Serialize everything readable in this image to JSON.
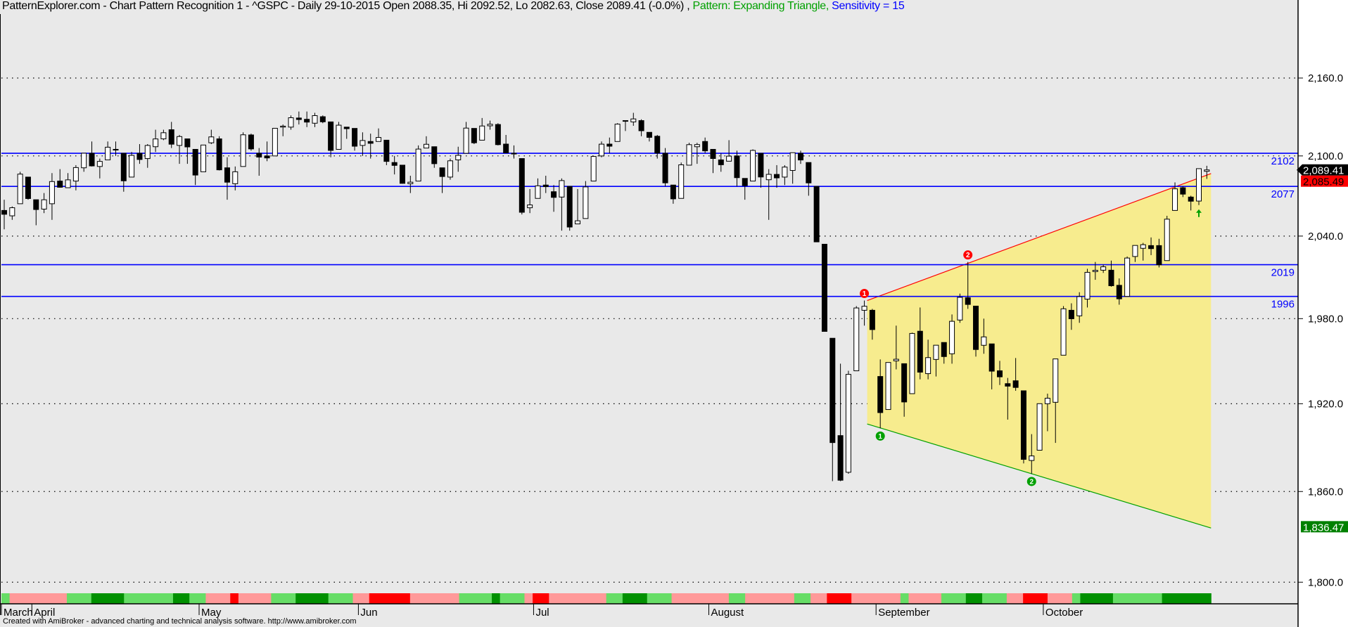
{
  "title": {
    "main": "PatternExplorer.com - Chart Pattern Recognition 1  - ^GSPC - Daily 29-10-2015 Open 2088.35, Hi 2092.52, Lo 2082.63, Close 2089.41 (-0.0%) ,",
    "pattern": " Pattern: Expanding Triangle,",
    "sensitivity": " Sensitivity = 15"
  },
  "footer": "Created with AmiBroker - advanced charting and technical analysis software. http://www.amibroker.com",
  "colors": {
    "background": "#e9e9e9",
    "level_line": "#0000ff",
    "upper_trend": "#ff0000",
    "lower_trend": "#00a000",
    "pattern_fill": "#f7ec8e",
    "strip_light_green": "#66dd66",
    "strip_dark_green": "#009000",
    "strip_pink": "#ff9999",
    "strip_red": "#ff0000"
  },
  "chart_data": {
    "type": "candlestick",
    "symbol": "^GSPC",
    "y_scale": "log",
    "ylim": [
      1790,
      2200
    ],
    "y_ticks": [
      "2,160.0",
      "2,100.0",
      "2,040.0",
      "1,980.0",
      "1,920.0",
      "1,860.0",
      "1,800.0"
    ],
    "y_tick_values": [
      2160,
      2100,
      2040,
      1980,
      1920,
      1860,
      1800
    ],
    "grid": "horizontal dotted",
    "x_labels": [
      {
        "label": "March",
        "index": 0
      },
      {
        "label": "April",
        "index": 4
      },
      {
        "label": "May",
        "index": 25
      },
      {
        "label": "Jun",
        "index": 45
      },
      {
        "label": "Jul",
        "index": 67
      },
      {
        "label": "August",
        "index": 89
      },
      {
        "label": "September",
        "index": 110
      },
      {
        "label": "October",
        "index": 131
      }
    ],
    "ohlc_fields": [
      "open",
      "high",
      "low",
      "close"
    ],
    "ohlc": [
      [
        2059,
        2067,
        2045,
        2056.15
      ],
      [
        2055,
        2062,
        2052,
        2061.02
      ],
      [
        2064,
        2088,
        2064,
        2086.24
      ],
      [
        2084,
        2084,
        2067,
        2067.89
      ],
      [
        2067,
        2067,
        2048,
        2059.69
      ],
      [
        2060,
        2072,
        2057,
        2066.96
      ],
      [
        2064,
        2087,
        2052,
        2080.62
      ],
      [
        2081,
        2090,
        2076,
        2076.33
      ],
      [
        2076,
        2087,
        2076,
        2081.9
      ],
      [
        2081,
        2093,
        2074,
        2091.18
      ],
      [
        2091,
        2102,
        2088,
        2102.06
      ],
      [
        2102,
        2111,
        2092,
        2092.43
      ],
      [
        2092,
        2098,
        2083,
        2095.84
      ],
      [
        2097,
        2111,
        2097,
        2106.63
      ],
      [
        2105,
        2111,
        2100,
        2104.99
      ],
      [
        2102,
        2102,
        2073,
        2081.18
      ],
      [
        2084,
        2103,
        2084,
        2100.4
      ],
      [
        2102,
        2109,
        2094,
        2097.29
      ],
      [
        2098,
        2109,
        2091,
        2107.96
      ],
      [
        2107,
        2120,
        2103,
        2112.93
      ],
      [
        2113,
        2120,
        2112,
        2117.69
      ],
      [
        2120,
        2126,
        2106,
        2108.92
      ],
      [
        2108,
        2116,
        2094,
        2114.76
      ],
      [
        2113,
        2113,
        2094,
        2106.85
      ],
      [
        2105,
        2105,
        2078,
        2085.51
      ],
      [
        2088,
        2108,
        2088,
        2108.29
      ],
      [
        2110,
        2120,
        2109,
        2114.49
      ],
      [
        2113,
        2115,
        2089,
        2089.46
      ],
      [
        2091,
        2099,
        2067,
        2080.15
      ],
      [
        2079,
        2092,
        2074,
        2088.0
      ],
      [
        2092,
        2118,
        2092,
        2116.1
      ],
      [
        2116,
        2117,
        2104,
        2105.33
      ],
      [
        2102,
        2106,
        2085,
        2099.12
      ],
      [
        2100,
        2111,
        2096,
        2098.48
      ],
      [
        2100,
        2121,
        2100,
        2121.1
      ],
      [
        2122,
        2124,
        2115,
        2122.73
      ],
      [
        2122,
        2131,
        2120,
        2129.2
      ],
      [
        2129,
        2134,
        2124,
        2127.83
      ],
      [
        2128,
        2134,
        2122,
        2125.85
      ],
      [
        2125,
        2133,
        2122,
        2130.82
      ],
      [
        2130,
        2131,
        2125,
        2126.06
      ],
      [
        2126,
        2126,
        2099,
        2104.2
      ],
      [
        2105,
        2126,
        2105,
        2123.48
      ],
      [
        2122,
        2122,
        2113,
        2120.79
      ],
      [
        2121,
        2121,
        2104,
        2107.39
      ],
      [
        2108,
        2118,
        2100,
        2111.73
      ],
      [
        2111,
        2117,
        2098,
        2109.6
      ],
      [
        2111,
        2121,
        2111,
        2114.07
      ],
      [
        2112,
        2112,
        2093,
        2095.84
      ],
      [
        2095,
        2100,
        2086,
        2092.83
      ],
      [
        2093,
        2093,
        2079,
        2079.28
      ],
      [
        2079,
        2085,
        2072,
        2080.15
      ],
      [
        2081,
        2108,
        2081,
        2105.2
      ],
      [
        2106,
        2115,
        2106,
        2108.86
      ],
      [
        2107,
        2107,
        2091,
        2094.11
      ],
      [
        2091,
        2091,
        2072,
        2084.43
      ],
      [
        2084,
        2098,
        2082,
        2096.29
      ],
      [
        2097,
        2107,
        2088,
        2100.44
      ],
      [
        2102,
        2126,
        2102,
        2121.24
      ],
      [
        2121,
        2121,
        2109,
        2109.99
      ],
      [
        2112,
        2129,
        2112,
        2122.85
      ],
      [
        2123,
        2127,
        2120,
        2124.2
      ],
      [
        2124,
        2125,
        2108,
        2108.58
      ],
      [
        2109,
        2116,
        2102,
        2102.31
      ],
      [
        2102,
        2108,
        2098,
        2101.49
      ],
      [
        2098,
        2098,
        2056,
        2057.64
      ],
      [
        2061,
        2075,
        2057,
        2063.11
      ],
      [
        2068,
        2083,
        2068,
        2077.42
      ],
      [
        2078,
        2085,
        2072,
        2076.78
      ],
      [
        2073,
        2078,
        2058,
        2068.76
      ],
      [
        2069,
        2083,
        2044,
        2081.34
      ],
      [
        2077,
        2077,
        2044,
        2046.68
      ],
      [
        2049,
        2075,
        2049,
        2051.31
      ],
      [
        2053,
        2081,
        2053,
        2076.62
      ],
      [
        2081,
        2100,
        2081,
        2099.6
      ],
      [
        2100,
        2111,
        2099,
        2108.95
      ],
      [
        2109,
        2114,
        2102,
        2107.4
      ],
      [
        2111,
        2125,
        2111,
        2124.29
      ],
      [
        2127,
        2127,
        2119,
        2126.64
      ],
      [
        2126,
        2133,
        2123,
        2128.28
      ],
      [
        2127,
        2128,
        2115,
        2119.21
      ],
      [
        2118,
        2118,
        2111,
        2114.15
      ],
      [
        2115,
        2116,
        2098,
        2102.15
      ],
      [
        2102,
        2106,
        2077,
        2079.65
      ],
      [
        2078,
        2078,
        2064,
        2067.64
      ],
      [
        2068,
        2095,
        2068,
        2093.25
      ],
      [
        2093,
        2110,
        2093,
        2108.57
      ],
      [
        2107,
        2110,
        2094,
        2108.63
      ],
      [
        2111,
        2114,
        2102,
        2103.84
      ],
      [
        2105,
        2105,
        2087,
        2098.04
      ],
      [
        2097,
        2102,
        2088,
        2093.32
      ],
      [
        2096,
        2112,
        2096,
        2099.84
      ],
      [
        2100,
        2104,
        2077,
        2083.56
      ],
      [
        2083,
        2083,
        2067,
        2077.57
      ],
      [
        2081,
        2105,
        2081,
        2104.18
      ],
      [
        2102,
        2102,
        2076,
        2084.07
      ],
      [
        2082,
        2090,
        2052,
        2086.05
      ],
      [
        2086,
        2093,
        2076,
        2083.39
      ],
      [
        2084,
        2093,
        2078,
        2091.54
      ],
      [
        2089,
        2102,
        2079,
        2102.44
      ],
      [
        2102,
        2104,
        2094,
        2096.92
      ],
      [
        2095,
        2095,
        2070,
        2079.61
      ],
      [
        2077,
        2077,
        2036,
        2035.73
      ],
      [
        2034,
        2034,
        1971,
        1970.89
      ],
      [
        1966,
        1966,
        1867,
        1893.21
      ],
      [
        1898,
        1948,
        1867,
        1867.61
      ],
      [
        1873,
        1943,
        1872,
        1940.51
      ],
      [
        1943,
        1989,
        1943,
        1987.66
      ],
      [
        1986,
        1993,
        1975,
        1988.87
      ],
      [
        1986,
        1987,
        1965,
        1972.18
      ],
      [
        1939,
        1951,
        1903,
        1913.85
      ],
      [
        1916,
        1949,
        1916,
        1948.86
      ],
      [
        1950,
        1975,
        1944,
        1951.13
      ],
      [
        1948,
        1948,
        1911,
        1921.22
      ],
      [
        1927,
        1970,
        1927,
        1969.41
      ],
      [
        1971,
        1988,
        1937,
        1942.04
      ],
      [
        1941,
        1965,
        1937,
        1952.29
      ],
      [
        1951,
        1961,
        1939,
        1961.05
      ],
      [
        1963,
        1963,
        1948,
        1953.03
      ],
      [
        1955,
        1983,
        1948,
        1978.09
      ],
      [
        1979,
        1998,
        1977,
        1995.31
      ],
      [
        1995,
        2021,
        1987,
        1990.2
      ],
      [
        1989,
        1989,
        1953,
        1958.03
      ],
      [
        1961,
        1980,
        1955,
        1966.97
      ],
      [
        1962,
        1962,
        1930,
        1942.74
      ],
      [
        1943,
        1950,
        1933,
        1938.76
      ],
      [
        1934,
        1938,
        1909,
        1932.24
      ],
      [
        1936,
        1952,
        1929,
        1931.34
      ],
      [
        1929,
        1929,
        1879,
        1881.77
      ],
      [
        1881,
        1899,
        1872,
        1884.09
      ],
      [
        1888,
        1920,
        1888,
        1920.03
      ],
      [
        1920,
        1927,
        1901,
        1923.82
      ],
      [
        1921,
        1951,
        1893,
        1951.36
      ],
      [
        1954,
        1989,
        1954,
        1987.05
      ],
      [
        1986,
        1991,
        1972,
        1979.92
      ],
      [
        1982,
        1999,
        1977,
        1995.83
      ],
      [
        1994,
        2016,
        1988,
        2013.43
      ],
      [
        2014,
        2021,
        2008,
        2014.89
      ],
      [
        2015,
        2019,
        2013,
        2017.46
      ],
      [
        2015,
        2022,
        2003,
        2003.69
      ],
      [
        2004,
        2009,
        1990,
        1994.24
      ],
      [
        1996,
        2025,
        1996,
        2023.86
      ],
      [
        2025,
        2033,
        2021,
        2033.11
      ],
      [
        2031,
        2035,
        2022,
        2033.66
      ],
      [
        2033,
        2039,
        2026,
        2030.77
      ],
      [
        2033,
        2038,
        2017,
        2018.94
      ],
      [
        2022,
        2055,
        2022,
        2052.51
      ],
      [
        2059,
        2080,
        2059,
        2075.15
      ],
      [
        2076,
        2077,
        2069,
        2071.18
      ],
      [
        2069,
        2070,
        2059,
        2065.89
      ],
      [
        2066,
        2090,
        2063,
        2090.35
      ],
      [
        2088.35,
        2092.52,
        2082.63,
        2089.41
      ]
    ],
    "levels": [
      {
        "label": "2102",
        "value": 2102
      },
      {
        "label": "2077",
        "value": 2077
      },
      {
        "label": "2019",
        "value": 2019
      },
      {
        "label": "1996",
        "value": 1996
      }
    ],
    "pattern": {
      "upper": {
        "from_index": 108,
        "from_price": 1993.0,
        "to_index": 151,
        "to_price": 2085.49
      },
      "lower": {
        "from_index": 108,
        "from_price": 1906.0,
        "to_index": 151,
        "to_price": 1836.47
      }
    },
    "pivots": [
      {
        "label": "1",
        "type": "high",
        "index": 108
      },
      {
        "label": "2",
        "type": "high",
        "index": 121
      },
      {
        "label": "1",
        "type": "low",
        "index": 110
      },
      {
        "label": "2",
        "type": "low",
        "index": 129
      }
    ],
    "signal_arrow": {
      "type": "buy",
      "index": 150
    },
    "badges": [
      {
        "label": "2,089.41",
        "value": 2089.41,
        "color": "#000000"
      },
      {
        "label": "2,085.49",
        "value": 2085.49,
        "color": "#ff0000"
      },
      {
        "label": "1,836.47",
        "value": 1836.47,
        "color": "#008000"
      }
    ],
    "strip": [
      [
        "lg",
        1
      ],
      [
        "pk",
        7
      ],
      [
        "lg",
        3
      ],
      [
        "dg",
        4
      ],
      [
        "lg",
        6
      ],
      [
        "dg",
        2
      ],
      [
        "lg",
        2
      ],
      [
        "pk",
        3
      ],
      [
        "rd",
        1
      ],
      [
        "pk",
        4
      ],
      [
        "lg",
        3
      ],
      [
        "dg",
        4
      ],
      [
        "lg",
        3
      ],
      [
        "pk",
        2
      ],
      [
        "rd",
        5
      ],
      [
        "pk",
        6
      ],
      [
        "lg",
        4
      ],
      [
        "dg",
        1
      ],
      [
        "lg",
        3
      ],
      [
        "pk",
        1
      ],
      [
        "rd",
        2
      ],
      [
        "pk",
        7
      ],
      [
        "lg",
        2
      ],
      [
        "dg",
        3
      ],
      [
        "lg",
        3
      ],
      [
        "pk",
        7
      ],
      [
        "lg",
        2
      ],
      [
        "pk",
        6
      ],
      [
        "lg",
        2
      ],
      [
        "pk",
        2
      ],
      [
        "rd",
        3
      ],
      [
        "pk",
        6
      ],
      [
        "lg",
        1
      ],
      [
        "pk",
        4
      ],
      [
        "lg",
        3
      ],
      [
        "dg",
        2
      ],
      [
        "lg",
        3
      ],
      [
        "pk",
        2
      ],
      [
        "rd",
        3
      ],
      [
        "pk",
        3
      ],
      [
        "lg",
        1
      ],
      [
        "dg",
        4
      ],
      [
        "lg",
        6
      ],
      [
        "dg",
        6
      ]
    ]
  }
}
